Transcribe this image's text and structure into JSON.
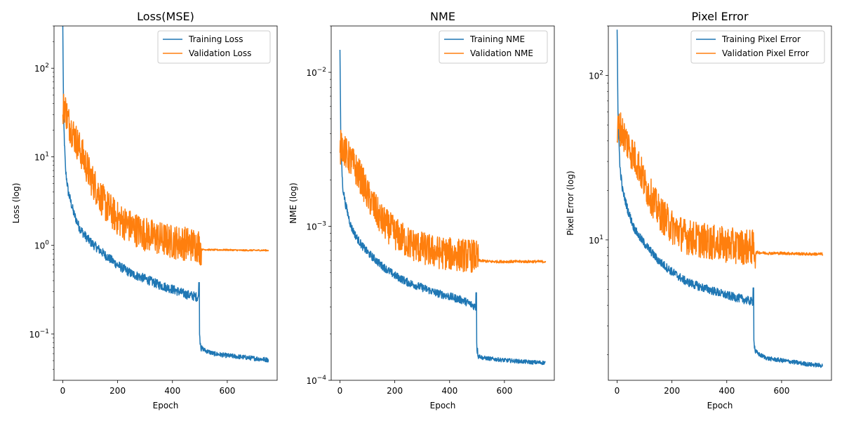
{
  "chart_data": [
    {
      "type": "line",
      "title": "Loss(MSE)",
      "xlabel": "Epoch",
      "ylabel": "Loss (log)",
      "yscale": "log",
      "xlim": [
        -32,
        782
      ],
      "ylim": [
        0.03,
        300
      ],
      "xticks": [
        0,
        200,
        400,
        600
      ],
      "yticks": [
        {
          "value": 0.1,
          "base": "10",
          "exp": "−1"
        },
        {
          "value": 1,
          "base": "10",
          "exp": "0"
        },
        {
          "value": 10,
          "base": "10",
          "exp": "1"
        },
        {
          "value": 100,
          "base": "10",
          "exp": "2"
        }
      ],
      "legend": "top-right",
      "grid": false,
      "series": [
        {
          "name": "Training Loss",
          "color": "#1f77b4",
          "x": [
            0,
            3,
            10,
            20,
            40,
            60,
            80,
            100,
            150,
            200,
            250,
            300,
            350,
            400,
            450,
            495,
            500,
            505,
            520,
            550,
            600,
            650,
            700,
            750
          ],
          "y": [
            300,
            25,
            7,
            4,
            2.3,
            1.6,
            1.3,
            1.1,
            0.8,
            0.6,
            0.48,
            0.42,
            0.36,
            0.32,
            0.28,
            0.26,
            0.09,
            0.07,
            0.065,
            0.06,
            0.057,
            0.055,
            0.053,
            0.051
          ],
          "amp": 0.12,
          "spike": [
            {
              "x": 497,
              "y": 0.38
            }
          ]
        },
        {
          "name": "Validation Loss",
          "color": "#ff7f0e",
          "x": [
            0,
            5,
            20,
            50,
            80,
            100,
            150,
            200,
            250,
            300,
            350,
            400,
            450,
            495,
            505,
            550,
            600,
            650,
            700,
            750
          ],
          "y": [
            30,
            40,
            25,
            15,
            9,
            6,
            3,
            2,
            1.6,
            1.35,
            1.2,
            1.1,
            1.05,
            1.0,
            0.9,
            0.89,
            0.89,
            0.88,
            0.88,
            0.88
          ],
          "amp": 0.45,
          "calm_after": 505
        }
      ]
    },
    {
      "type": "line",
      "title": "NME",
      "xlabel": "Epoch",
      "ylabel": "NME (log)",
      "yscale": "log",
      "xlim": [
        -32,
        782
      ],
      "ylim": [
        0.0001,
        0.02
      ],
      "xticks": [
        0,
        200,
        400,
        600
      ],
      "yticks": [
        {
          "value": 0.0001,
          "base": "10",
          "exp": "−4"
        },
        {
          "value": 0.001,
          "base": "10",
          "exp": "−3"
        },
        {
          "value": 0.01,
          "base": "10",
          "exp": "−2"
        }
      ],
      "legend": "top-right",
      "grid": false,
      "series": [
        {
          "name": "Training NME",
          "color": "#1f77b4",
          "x": [
            0,
            3,
            10,
            20,
            40,
            60,
            80,
            100,
            150,
            200,
            250,
            300,
            350,
            400,
            450,
            495,
            500,
            505,
            520,
            550,
            600,
            650,
            700,
            750
          ],
          "y": [
            0.014,
            0.0035,
            0.0018,
            0.0014,
            0.001,
            0.00085,
            0.00075,
            0.00068,
            0.00056,
            0.00048,
            0.00043,
            0.0004,
            0.00037,
            0.00035,
            0.00033,
            0.0003,
            0.00016,
            0.000145,
            0.00014,
            0.000138,
            0.000135,
            0.000133,
            0.000131,
            0.00013
          ],
          "amp": 0.06,
          "spike": [
            {
              "x": 497,
              "y": 0.00037
            }
          ]
        },
        {
          "name": "Validation NME",
          "color": "#ff7f0e",
          "x": [
            0,
            5,
            20,
            50,
            80,
            100,
            150,
            200,
            250,
            300,
            350,
            400,
            450,
            495,
            505,
            550,
            600,
            650,
            700,
            750
          ],
          "y": [
            0.003,
            0.0035,
            0.003,
            0.0025,
            0.002,
            0.0016,
            0.0011,
            0.0009,
            0.00078,
            0.00072,
            0.00068,
            0.00066,
            0.00065,
            0.00064,
            0.0006,
            0.00059,
            0.00059,
            0.00059,
            0.00059,
            0.00059
          ],
          "amp": 0.25,
          "calm_after": 505
        }
      ]
    },
    {
      "type": "line",
      "title": "Pixel Error",
      "xlabel": "Epoch",
      "ylabel": "Pixel Error (log)",
      "yscale": "log",
      "xlim": [
        -32,
        782
      ],
      "ylim": [
        1.4,
        200
      ],
      "xticks": [
        0,
        200,
        400,
        600
      ],
      "yticks": [
        {
          "value": 10,
          "base": "10",
          "exp": "1"
        },
        {
          "value": 100,
          "base": "10",
          "exp": "2"
        }
      ],
      "legend": "top-right",
      "grid": false,
      "series": [
        {
          "name": "Training Pixel Error",
          "color": "#1f77b4",
          "x": [
            0,
            3,
            10,
            20,
            40,
            60,
            80,
            100,
            150,
            200,
            250,
            300,
            350,
            400,
            450,
            495,
            500,
            505,
            520,
            550,
            600,
            650,
            700,
            750
          ],
          "y": [
            190,
            60,
            28,
            20,
            15,
            12,
            10.5,
            9.5,
            7.5,
            6.4,
            5.6,
            5.2,
            4.9,
            4.6,
            4.4,
            4.2,
            2.3,
            2.1,
            2.0,
            1.9,
            1.85,
            1.8,
            1.75,
            1.72
          ],
          "amp": 0.06,
          "spike": [
            {
              "x": 497,
              "y": 5.1
            }
          ]
        },
        {
          "name": "Validation Pixel Error",
          "color": "#ff7f0e",
          "x": [
            0,
            5,
            20,
            50,
            80,
            100,
            150,
            200,
            250,
            300,
            350,
            400,
            450,
            495,
            505,
            550,
            600,
            650,
            700,
            750
          ],
          "y": [
            40,
            50,
            45,
            35,
            28,
            22,
            15,
            12,
            10.5,
            10,
            9.6,
            9.3,
            9.1,
            9.0,
            8.4,
            8.3,
            8.3,
            8.25,
            8.2,
            8.2
          ],
          "amp": 0.25,
          "calm_after": 505
        }
      ]
    }
  ]
}
